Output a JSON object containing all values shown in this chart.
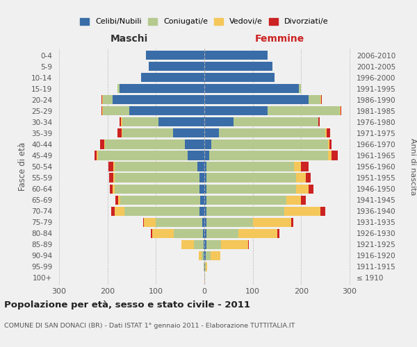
{
  "age_groups": [
    "100+",
    "95-99",
    "90-94",
    "85-89",
    "80-84",
    "75-79",
    "70-74",
    "65-69",
    "60-64",
    "55-59",
    "50-54",
    "45-49",
    "40-44",
    "35-39",
    "30-34",
    "25-29",
    "20-24",
    "15-19",
    "10-14",
    "5-9",
    "0-4"
  ],
  "birth_years": [
    "≤ 1910",
    "1911-1915",
    "1916-1920",
    "1921-1925",
    "1926-1930",
    "1931-1935",
    "1936-1940",
    "1941-1945",
    "1946-1950",
    "1951-1955",
    "1956-1960",
    "1961-1965",
    "1966-1970",
    "1971-1975",
    "1976-1980",
    "1981-1985",
    "1986-1990",
    "1991-1995",
    "1996-2000",
    "2001-2005",
    "2006-2010"
  ],
  "colors": {
    "celibi": "#3a6da8",
    "coniugati": "#b5c98e",
    "vedovi": "#f5c75a",
    "divorziati": "#cc2222"
  },
  "maschi": {
    "celibi": [
      0,
      0,
      1,
      2,
      3,
      5,
      10,
      8,
      10,
      10,
      15,
      35,
      40,
      65,
      95,
      155,
      190,
      175,
      130,
      115,
      120
    ],
    "coniugati": [
      0,
      1,
      5,
      20,
      60,
      95,
      155,
      165,
      175,
      175,
      170,
      185,
      165,
      105,
      75,
      55,
      20,
      5,
      0,
      0,
      0
    ],
    "vedovi": [
      0,
      1,
      5,
      25,
      45,
      25,
      20,
      5,
      5,
      3,
      3,
      2,
      2,
      1,
      2,
      1,
      1,
      0,
      0,
      0,
      0
    ],
    "divorziati": [
      0,
      0,
      0,
      0,
      2,
      2,
      8,
      5,
      5,
      8,
      10,
      5,
      8,
      8,
      3,
      2,
      1,
      0,
      0,
      0,
      0
    ]
  },
  "femmine": {
    "celibi": [
      0,
      1,
      3,
      5,
      5,
      5,
      5,
      5,
      5,
      5,
      5,
      10,
      15,
      30,
      60,
      130,
      215,
      195,
      145,
      140,
      130
    ],
    "coniugati": [
      0,
      2,
      10,
      30,
      65,
      95,
      160,
      165,
      185,
      185,
      180,
      245,
      240,
      220,
      175,
      150,
      25,
      5,
      0,
      0,
      0
    ],
    "vedovi": [
      1,
      3,
      20,
      55,
      80,
      80,
      75,
      30,
      25,
      20,
      15,
      8,
      3,
      2,
      1,
      1,
      1,
      0,
      0,
      0,
      0
    ],
    "divorziati": [
      0,
      0,
      0,
      2,
      5,
      3,
      10,
      10,
      10,
      10,
      15,
      12,
      5,
      8,
      2,
      2,
      1,
      0,
      0,
      0,
      0
    ]
  },
  "xlim": 310,
  "title": "Popolazione per età, sesso e stato civile - 2011",
  "subtitle": "COMUNE DI SAN DONACI (BR) - Dati ISTAT 1° gennaio 2011 - Elaborazione TUTTITALIA.IT",
  "ylabel_left": "Fasce di età",
  "ylabel_right": "Anni di nascita",
  "xlabel_left": "Maschi",
  "xlabel_top_right": "Femmine",
  "bg_color": "#f0f0f0"
}
